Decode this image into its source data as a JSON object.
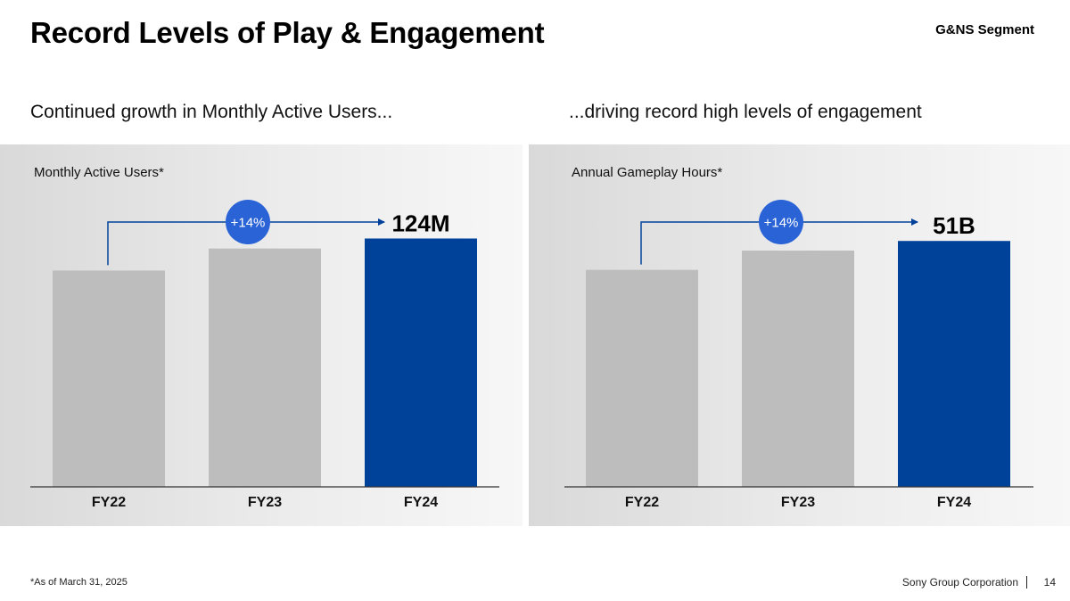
{
  "header": {
    "title": "Record Levels of Play & Engagement",
    "segment": "G&NS Segment"
  },
  "left": {
    "subhead": "Continued growth in Monthly Active Users...",
    "label": "Monthly Active Users*"
  },
  "right": {
    "subhead": "...driving record high levels of engagement",
    "label": "Annual Gameplay Hours*"
  },
  "footer": {
    "footnote": "*As of March 31, 2025",
    "company": "Sony Group Corporation",
    "page": "14"
  },
  "colors": {
    "highlight_bar": "#00429a",
    "prior_bar": "#bdbdbd",
    "growth_badge": "#2a63d6",
    "arrow": "#00429a"
  },
  "chart_data": [
    {
      "type": "bar",
      "title": "Monthly Active Users*",
      "categories": [
        "FY22",
        "FY23",
        "FY24"
      ],
      "values": [
        108,
        119,
        124
      ],
      "value_labels": [
        "",
        "",
        "124M"
      ],
      "unit": "M",
      "growth_label": "+14%",
      "ylim": [
        0,
        130
      ],
      "grid": false
    },
    {
      "type": "bar",
      "title": "Annual Gameplay Hours*",
      "categories": [
        "FY22",
        "FY23",
        "FY24"
      ],
      "values": [
        45,
        49,
        51
      ],
      "value_labels": [
        "",
        "",
        "51B"
      ],
      "unit": "B",
      "growth_label": "+14%",
      "ylim": [
        0,
        54
      ],
      "grid": false
    }
  ]
}
